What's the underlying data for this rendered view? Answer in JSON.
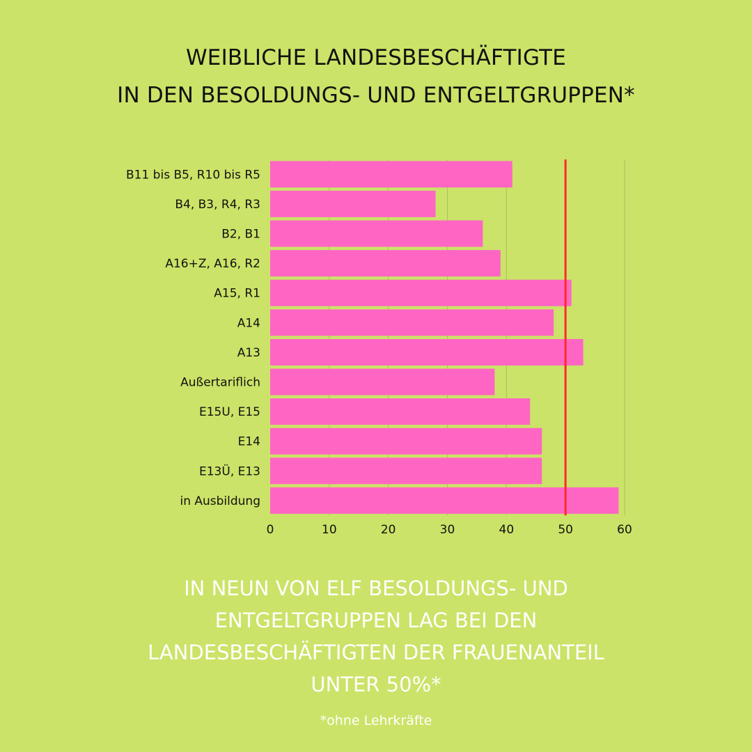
{
  "title": {
    "line1": "WEIBLICHE LANDESBESCHÄFTIGTE",
    "line2": "IN DEN BESOLDUNGS- UND ENTGELTGRUPPEN*"
  },
  "summary": {
    "line1": "IN NEUN VON ELF BESOLDUNGS- UND",
    "line2": "ENTGELTGRUPPEN LAG BEI DEN",
    "line3": "LANDESBESCHÄFTIGTEN DER FRAUENANTEIL",
    "line4": "UNTER 50%*"
  },
  "footnote": "*ohne Lehrkräfte",
  "colors": {
    "background": "#cbe368",
    "bar": "#ff66c4",
    "reference_line": "#ff2a2a",
    "grid": "#a9c060"
  },
  "chart_data": {
    "type": "bar",
    "orientation": "horizontal",
    "title": "WEIBLICHE LANDESBESCHÄFTIGTE IN DEN BESOLDUNGS- UND ENTGELTGRUPPEN*",
    "categories": [
      "B11 bis B5, R10 bis R5",
      "B4, B3, R4, R3",
      "B2, B1",
      "A16+Z, A16, R2",
      "A15, R1",
      "A14",
      "A13",
      "Außertariflich",
      "E15U, E15",
      "E14",
      "E13Ü, E13",
      "in Ausbildung"
    ],
    "values": [
      41,
      28,
      36,
      39,
      51,
      48,
      53,
      38,
      44,
      46,
      46,
      59
    ],
    "xlim": [
      0,
      60
    ],
    "xticks": [
      0,
      10,
      20,
      30,
      40,
      50,
      60
    ],
    "reference_line": 50,
    "xlabel": "",
    "ylabel": "",
    "grid": true
  }
}
